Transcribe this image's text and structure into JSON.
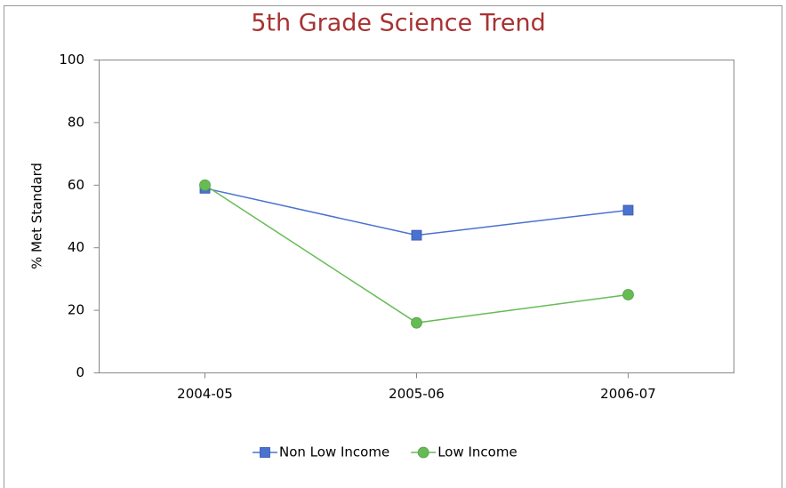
{
  "chart_data": {
    "type": "line",
    "title": "5th Grade Science Trend",
    "y_label": "% Met Standard",
    "categories": [
      "2004-05",
      "2005-06",
      "2006-07"
    ],
    "series": [
      {
        "name": "Non Low Income",
        "color": "#4a72d0",
        "marker": "square",
        "values": [
          59,
          44,
          52
        ]
      },
      {
        "name": "Low Income",
        "color": "#66bb55",
        "marker": "circle",
        "values": [
          60,
          16,
          25
        ]
      }
    ],
    "ylim": [
      0,
      100
    ],
    "yticks": [
      0,
      20,
      40,
      60,
      80,
      100
    ],
    "grid": false,
    "legend": "bottom"
  }
}
